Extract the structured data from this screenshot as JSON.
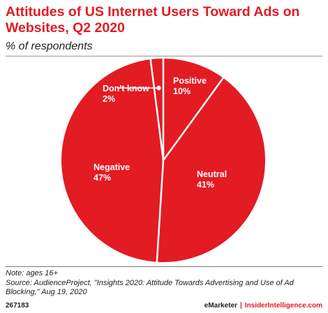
{
  "chart_data": {
    "type": "pie",
    "title": "Attitudes of US Internet Users Toward Ads on Websites, Q2 2020",
    "subtitle": "% of respondents",
    "slices": [
      {
        "label": "Positive",
        "value": 10,
        "value_label": "10%"
      },
      {
        "label": "Neutral",
        "value": 41,
        "value_label": "41%"
      },
      {
        "label": "Negative",
        "value": 47,
        "value_label": "47%"
      },
      {
        "label": "Don't know",
        "value": 2,
        "value_label": "2%"
      }
    ],
    "slice_color": "#e31b23",
    "separator_color": "#ffffff"
  },
  "notes": {
    "note": "Note: ages 16+",
    "source": "Source: AudienceProject, \"Insights 2020: Attitude Towards Advertising and Use of Ad Blocking,\" Aug 19, 2020"
  },
  "footer": {
    "chart_id": "267183",
    "brand": "eMarketer",
    "separator": "|",
    "site": "InsiderIntelligence.com"
  },
  "colors": {
    "accent": "#e31b23",
    "text": "#222222"
  }
}
